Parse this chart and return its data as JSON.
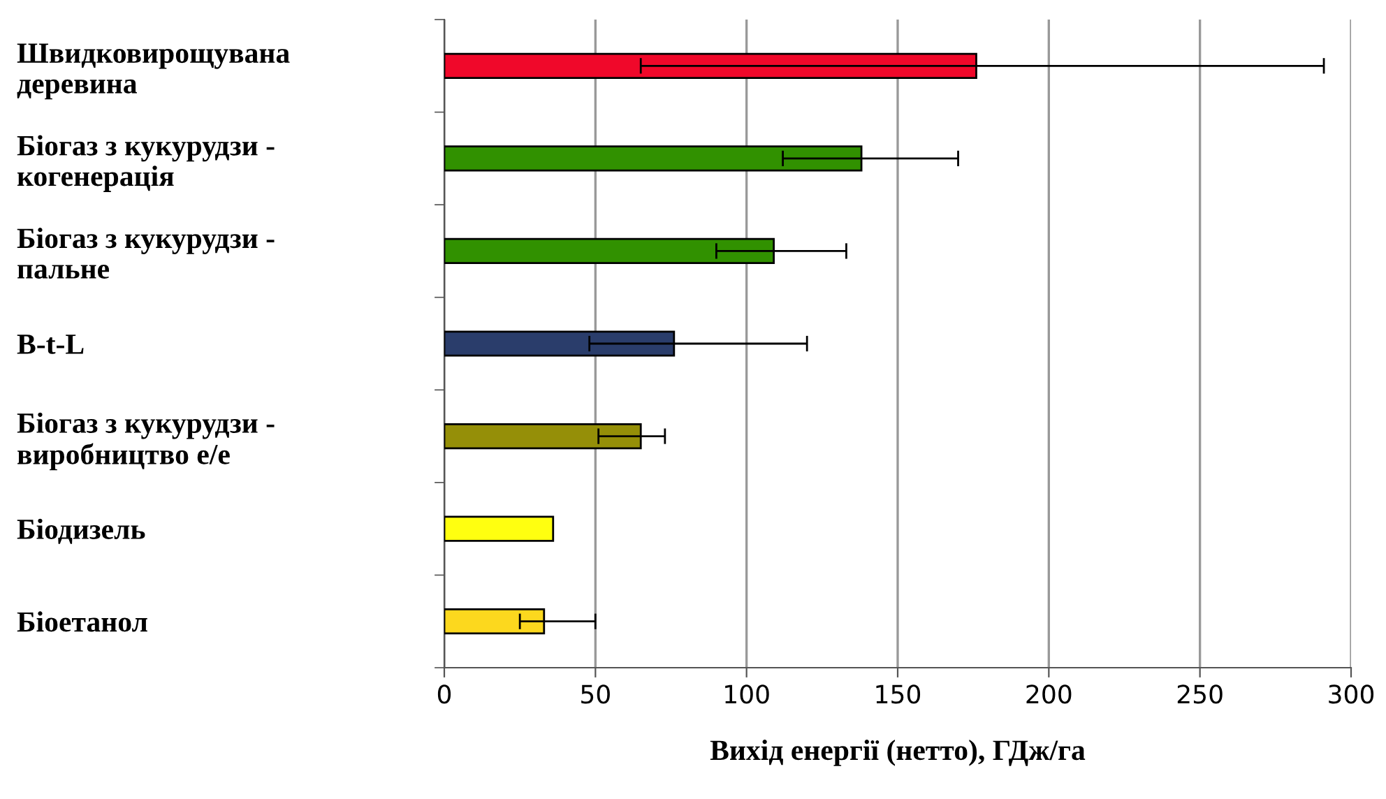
{
  "chart_data": {
    "type": "bar",
    "orientation": "horizontal",
    "categories": [
      "Швидковирощувана\nдеревина",
      "Біогаз з кукурудзи -\nкогенерація",
      "Біогаз з кукурудзи -\nпальне",
      "B-t-L",
      "Біогаз з кукурудзи -\nвиробництво е/е",
      "Біодизель",
      "Біоетанол"
    ],
    "values": [
      176,
      138,
      109,
      76,
      65,
      36,
      33
    ],
    "colors": [
      "#f0082a",
      "#319100",
      "#319100",
      "#2a3d6b",
      "#958f08",
      "#ffff10",
      "#fcd81e"
    ],
    "errors": [
      [
        65,
        291
      ],
      [
        112,
        170
      ],
      [
        90,
        133
      ],
      [
        48,
        120
      ],
      [
        51,
        73
      ],
      null,
      [
        25,
        50
      ]
    ],
    "xlabel": "Вихід енергії (нетто), ГДж/га",
    "xlim": [
      0,
      300
    ],
    "xticks": [
      0,
      50,
      100,
      150,
      200,
      250,
      300
    ],
    "grid": "x"
  }
}
